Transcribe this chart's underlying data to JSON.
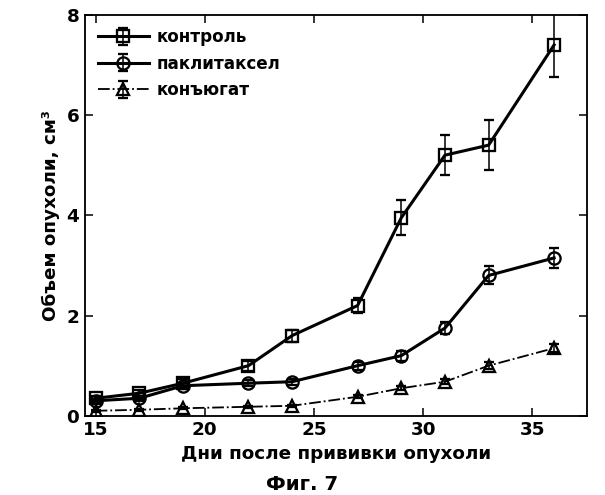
{
  "title": "Фиг. 7",
  "xlabel": "Дни после прививки опухоли",
  "ylabel": "Объем опухоли, см³",
  "xlim": [
    14.5,
    37.5
  ],
  "ylim": [
    0,
    8
  ],
  "yticks": [
    0,
    2,
    4,
    6,
    8
  ],
  "xticks": [
    15,
    20,
    25,
    30,
    35
  ],
  "series": [
    {
      "label": "контроль",
      "x": [
        15,
        17,
        19,
        22,
        24,
        27,
        29,
        31,
        33,
        36
      ],
      "y": [
        0.35,
        0.45,
        0.65,
        1.0,
        1.6,
        2.2,
        3.95,
        5.2,
        5.4,
        7.4
      ],
      "yerr": [
        0.05,
        0.07,
        0.08,
        0.1,
        0.12,
        0.15,
        0.35,
        0.4,
        0.5,
        0.65
      ],
      "marker": "s",
      "linestyle": "-",
      "color": "#000000",
      "markersize": 8,
      "fillstyle": "none",
      "linewidth": 2.0
    },
    {
      "label": "паклитаксел",
      "x": [
        15,
        17,
        19,
        22,
        24,
        27,
        29,
        31,
        33,
        36
      ],
      "y": [
        0.3,
        0.35,
        0.6,
        0.65,
        0.68,
        1.0,
        1.2,
        1.75,
        2.8,
        3.15
      ],
      "yerr": [
        0.04,
        0.05,
        0.06,
        0.06,
        0.06,
        0.08,
        0.1,
        0.12,
        0.18,
        0.2
      ],
      "marker": "o",
      "linestyle": "-",
      "color": "#000000",
      "markersize": 8,
      "fillstyle": "none",
      "linewidth": 2.0
    },
    {
      "label": "конъюгат",
      "x": [
        15,
        17,
        19,
        22,
        24,
        27,
        29,
        31,
        33,
        36
      ],
      "y": [
        0.1,
        0.12,
        0.15,
        0.18,
        0.2,
        0.38,
        0.55,
        0.68,
        1.0,
        1.35
      ],
      "yerr": [
        0.02,
        0.02,
        0.02,
        0.02,
        0.02,
        0.03,
        0.04,
        0.05,
        0.07,
        0.08
      ],
      "marker": "^",
      "linestyle": "-.",
      "color": "#000000",
      "markersize": 8,
      "fillstyle": "none",
      "linewidth": 1.2
    }
  ],
  "background_color": "#ffffff",
  "fig_width": 5.5,
  "fig_height": 4.5
}
